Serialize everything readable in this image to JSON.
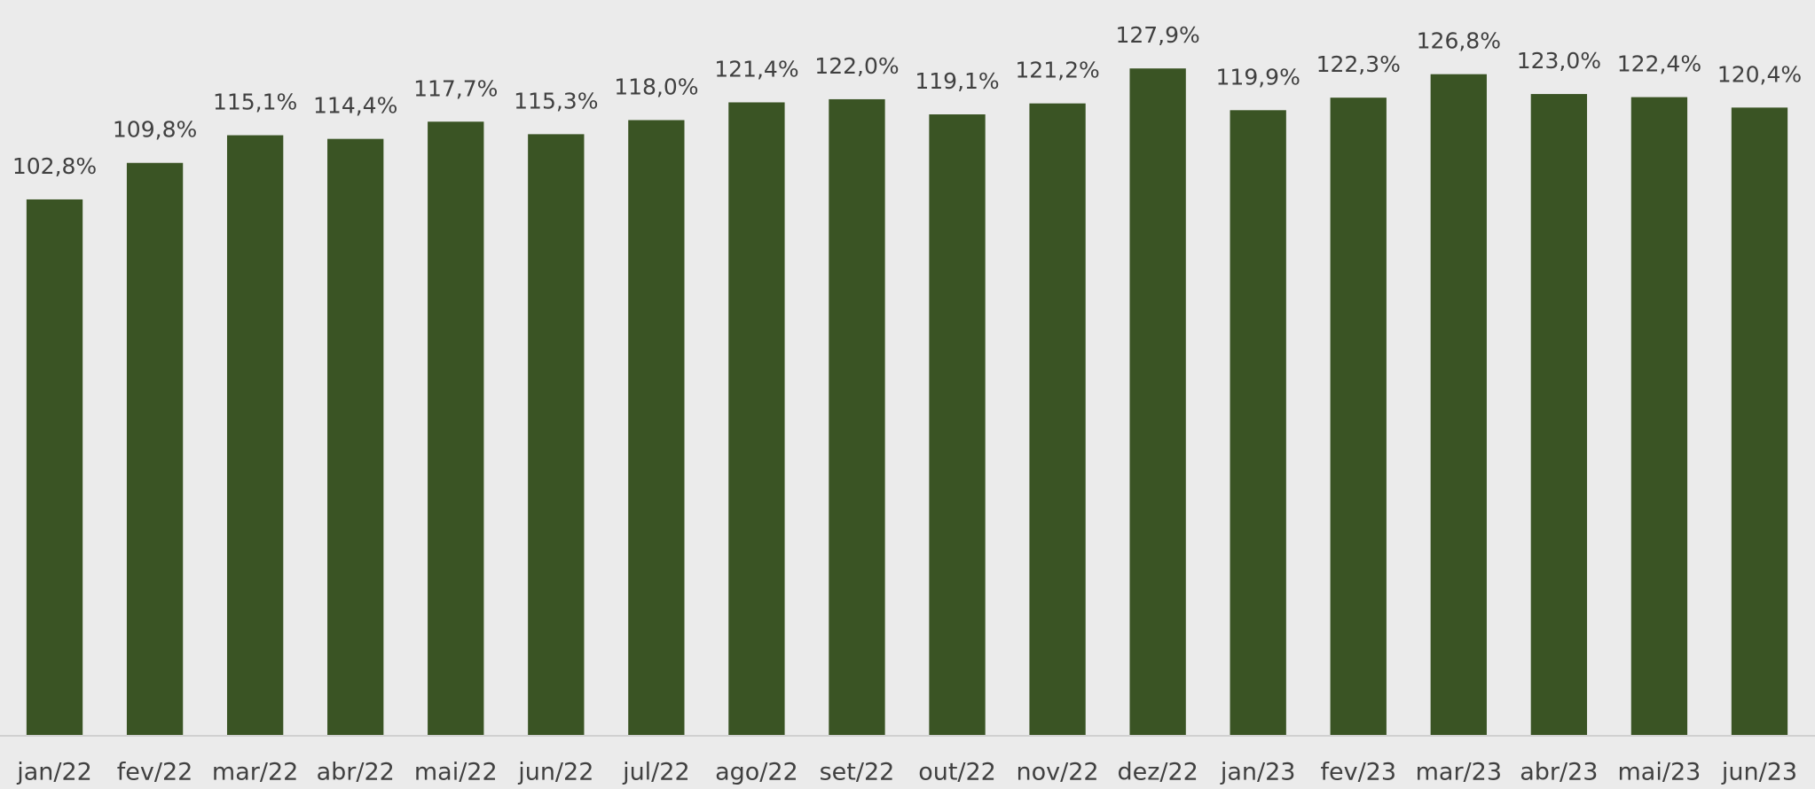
{
  "chart_data": {
    "type": "bar",
    "categories": [
      "jan/22",
      "fev/22",
      "mar/22",
      "abr/22",
      "mai/22",
      "jun/22",
      "jul/22",
      "ago/22",
      "set/22",
      "out/22",
      "nov/22",
      "dez/22",
      "jan/23",
      "fev/23",
      "mar/23",
      "abr/23",
      "mai/23",
      "jun/23"
    ],
    "values": [
      102.8,
      109.8,
      115.1,
      114.4,
      117.7,
      115.3,
      118.0,
      121.4,
      122.0,
      119.1,
      121.2,
      127.9,
      119.9,
      122.3,
      126.8,
      123.0,
      122.4,
      120.4
    ],
    "value_labels": [
      "102,8%",
      "109,8%",
      "115,1%",
      "114,4%",
      "117,7%",
      "115,3%",
      "118,0%",
      "121,4%",
      "122,0%",
      "119,1%",
      "121,2%",
      "127,9%",
      "119,9%",
      "122,3%",
      "126,8%",
      "123,0%",
      "122,4%",
      "120,4%"
    ],
    "color": "#3a5424",
    "ylim": [
      0,
      140
    ]
  }
}
